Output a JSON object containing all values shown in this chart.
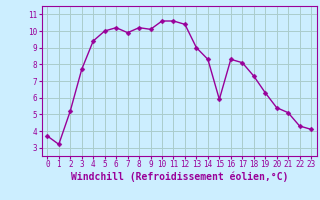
{
  "x": [
    0,
    1,
    2,
    3,
    4,
    5,
    6,
    7,
    8,
    9,
    10,
    11,
    12,
    13,
    14,
    15,
    16,
    17,
    18,
    19,
    20,
    21,
    22,
    23
  ],
  "y": [
    3.7,
    3.2,
    5.2,
    7.7,
    9.4,
    10.0,
    10.2,
    9.9,
    10.2,
    10.1,
    10.6,
    10.6,
    10.4,
    9.0,
    8.3,
    5.9,
    8.3,
    8.1,
    7.3,
    6.3,
    5.4,
    5.1,
    4.3,
    4.1
  ],
  "line_color": "#990099",
  "marker": "D",
  "markersize": 2.5,
  "linewidth": 1,
  "background_color": "#cceeff",
  "grid_color": "#aacccc",
  "xlabel": "Windchill (Refroidissement éolien,°C)",
  "ylabel": "",
  "xlim": [
    -0.5,
    23.5
  ],
  "ylim": [
    2.5,
    11.5
  ],
  "yticks": [
    3,
    4,
    5,
    6,
    7,
    8,
    9,
    10,
    11
  ],
  "xticks": [
    0,
    1,
    2,
    3,
    4,
    5,
    6,
    7,
    8,
    9,
    10,
    11,
    12,
    13,
    14,
    15,
    16,
    17,
    18,
    19,
    20,
    21,
    22,
    23
  ],
  "tick_fontsize": 5.5,
  "xlabel_fontsize": 7,
  "tick_color": "#990099",
  "spine_color": "#990099",
  "xlabel_color": "#990099"
}
